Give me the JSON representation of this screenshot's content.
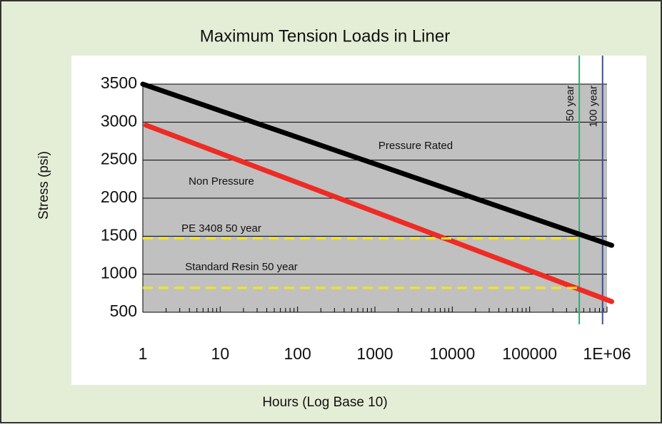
{
  "chart_data": {
    "type": "line",
    "title": "Maximum Tension Loads in Liner",
    "xlabel": "Hours (Log Base 10)",
    "ylabel": "Stress (psi)",
    "xscale": "log",
    "xlim": [
      1,
      1000000
    ],
    "ylim": [
      500,
      3500
    ],
    "xticks": [
      1,
      10,
      100,
      1000,
      10000,
      100000,
      {
        "value": 1000000,
        "label": "1E+06"
      }
    ],
    "yticks": [
      500,
      1000,
      1500,
      2000,
      2500,
      3000,
      3500
    ],
    "grid": true,
    "series": [
      {
        "name": "Pressure Rated",
        "color": "#000000",
        "style": "solid",
        "x": [
          1,
          1150000
        ],
        "values": [
          3500,
          1380
        ]
      },
      {
        "name": "Non Pressure",
        "color": "#ee2b24",
        "style": "solid",
        "x": [
          1.1,
          1150000
        ],
        "values": [
          2960,
          640
        ]
      },
      {
        "name": "PE 3408 50 year",
        "color": "#f2e51d",
        "style": "dashed",
        "x": [
          1,
          438000
        ],
        "values": [
          1470,
          1470
        ]
      },
      {
        "name": "Standard Resin 50 year",
        "color": "#f2e51d",
        "style": "dashed",
        "x": [
          1,
          438000
        ],
        "values": [
          820,
          820
        ]
      }
    ],
    "vlines": [
      {
        "label": "50 year",
        "x": 438000,
        "color": "#3aa57a"
      },
      {
        "label": "100 year",
        "x": 876000,
        "color": "#3d4f9a"
      }
    ]
  }
}
